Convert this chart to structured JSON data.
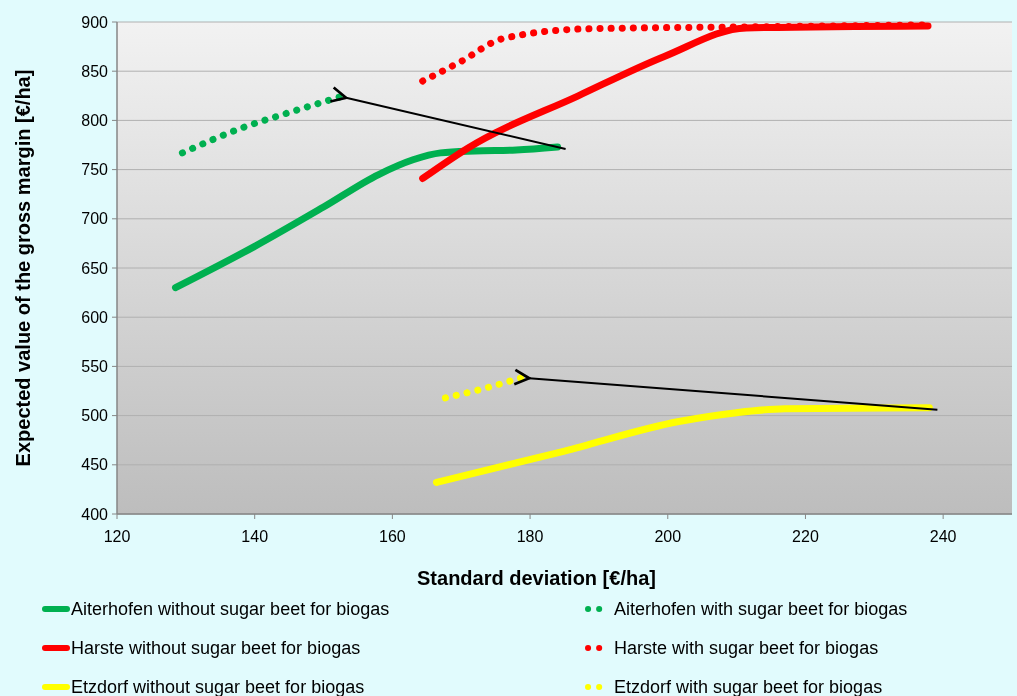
{
  "chart_data": {
    "type": "line",
    "xlabel": "Standard deviation [€/ha]",
    "ylabel": "Expected value of the gross margin  [€/ha]",
    "xlim": [
      120,
      250
    ],
    "xticks": [
      120,
      140,
      160,
      180,
      200,
      220,
      240
    ],
    "ylim": [
      400,
      900
    ],
    "yticks": [
      400,
      450,
      500,
      550,
      600,
      650,
      700,
      750,
      800,
      850,
      900
    ],
    "grid": "y",
    "legend": "bottom",
    "marker": "none",
    "series": [
      {
        "name": "Aiterhofen without sugar beet for biogas",
        "color": "#00b050",
        "line_style": "solid",
        "x": [
          128.5,
          140,
          150,
          158,
          163,
          167,
          172,
          178,
          184
        ],
        "values": [
          630,
          672,
          712,
          745,
          760,
          767,
          769,
          770,
          773
        ]
      },
      {
        "name": "Aiterhofen with sugar beet for biogas",
        "color": "#00b050",
        "line_style": "dotted",
        "x": [
          129.5,
          138.4,
          145,
          152.4
        ],
        "values": [
          767,
          793,
          808,
          824
        ]
      },
      {
        "name": "Harste without sugar beet for biogas",
        "color": "#ff0000",
        "line_style": "solid",
        "x": [
          164.4,
          171,
          187,
          199.5,
          211.4,
          237.8
        ],
        "values": [
          741,
          772,
          825,
          865,
          894,
          896
        ]
      },
      {
        "name": "Harste with sugar beet for biogas",
        "color": "#ff0000",
        "line_style": "dotted",
        "x": [
          164.4,
          170,
          176,
          188,
          211,
          237
        ],
        "values": [
          840,
          860,
          883,
          893,
          895,
          897
        ]
      },
      {
        "name": "Etzdorf without sugar beet for biogas",
        "color": "#ffff00",
        "line_style": "solid",
        "x": [
          166.4,
          185,
          201.6,
          210,
          217,
          238
        ],
        "values": [
          432,
          464,
          494,
          503,
          507,
          508
        ]
      },
      {
        "name": "Etzdorf with sugar beet for biogas",
        "color": "#ffff00",
        "line_style": "dotted",
        "x": [
          167.7,
          173,
          179
        ],
        "values": [
          518,
          527,
          539
        ]
      }
    ]
  }
}
